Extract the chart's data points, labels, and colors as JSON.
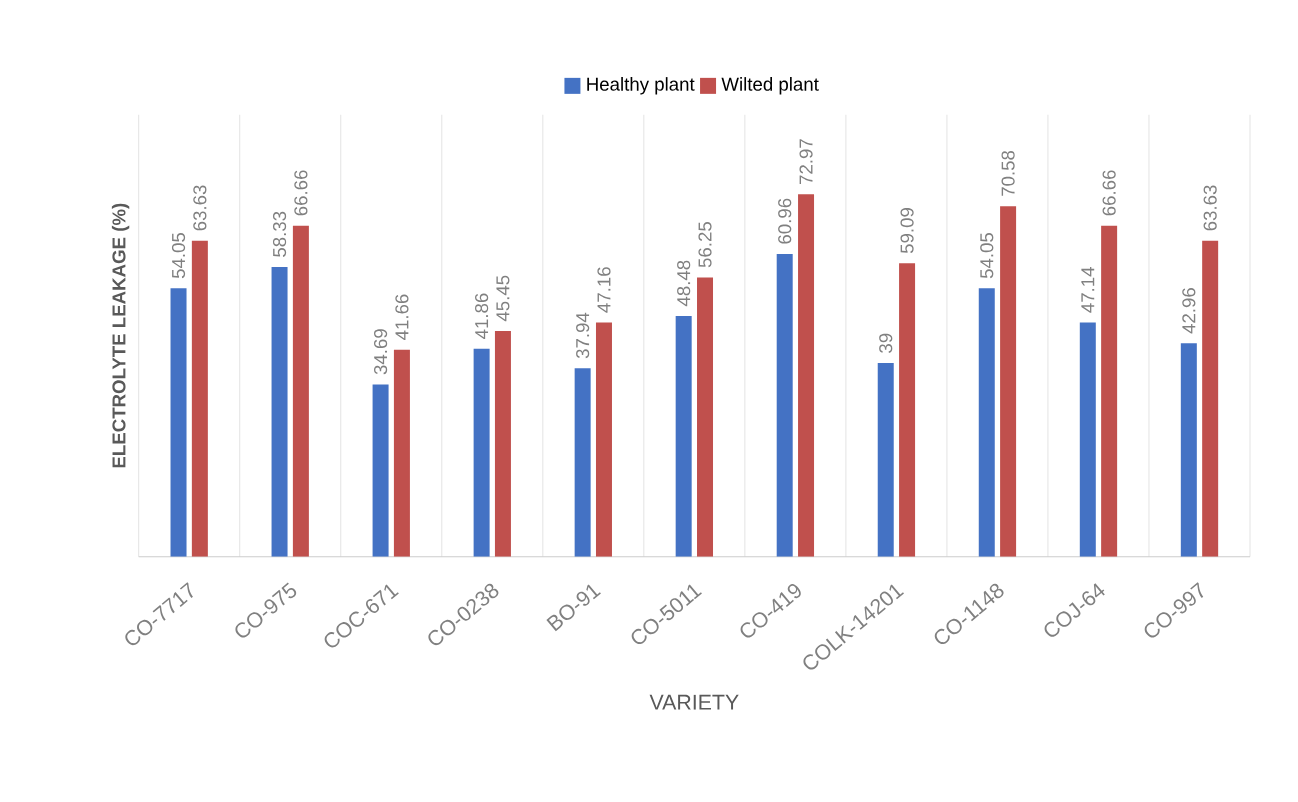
{
  "chart_data": {
    "type": "bar",
    "ylabel": "ELECTROLYTE LEAKAGE (%)",
    "xlabel": "VARIETY",
    "categories": [
      "CO-7717",
      "CO-975",
      "COC-671",
      "CO-0238",
      "BO-91",
      "CO-5011",
      "CO-419",
      "COLK-14201",
      "CO-1148",
      "COJ-64",
      "CO-997"
    ],
    "series": [
      {
        "name": "Healthy plant",
        "color": "#4472c4",
        "values": [
          54.05,
          58.33,
          34.69,
          41.86,
          37.94,
          48.48,
          60.96,
          39,
          54.05,
          47.14,
          42.96
        ]
      },
      {
        "name": "Wilted plant",
        "color": "#c0504d",
        "values": [
          63.63,
          66.66,
          41.66,
          45.45,
          47.16,
          56.25,
          72.97,
          59.09,
          70.58,
          66.66,
          63.63
        ]
      }
    ],
    "data_labels": true,
    "grid": "x",
    "legend": "top"
  }
}
